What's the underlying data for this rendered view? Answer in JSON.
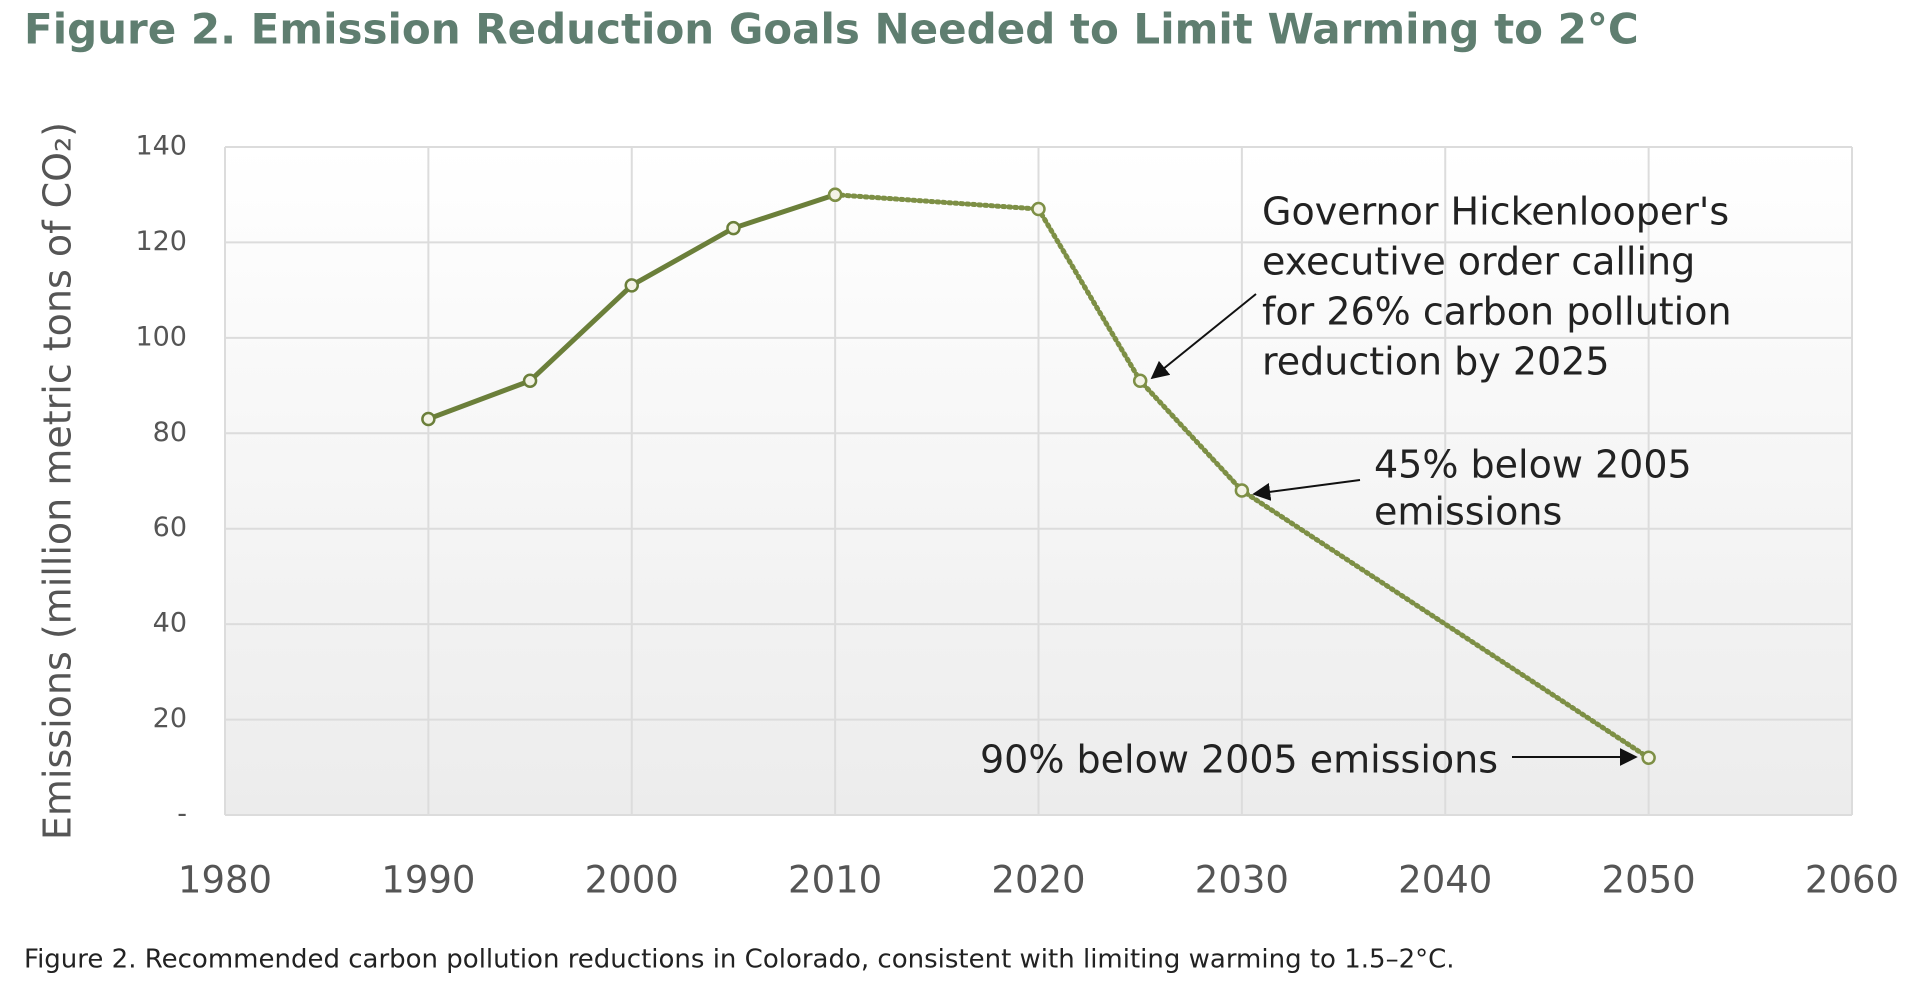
{
  "chart_data": {
    "type": "line",
    "title": "Figure 2. Emission Reduction Goals Needed to Limit Warming to 2°C",
    "caption": "Figure 2. Recommended carbon pollution reductions in Colorado, consistent with limiting warming to 1.5–2°C.",
    "y_label": "Emissions (million metric tons of CO₂)",
    "x": [
      1990,
      1995,
      2000,
      2005,
      2010,
      2020,
      2025,
      2030,
      2050
    ],
    "series": [
      {
        "color": "#6b7f3a",
        "style": "solid",
        "values": [
          83,
          91,
          111,
          123,
          130,
          null,
          null,
          null,
          null
        ]
      },
      {
        "color": "#7d8f45",
        "style": "dotted",
        "values": [
          null,
          null,
          null,
          null,
          130,
          127,
          91,
          68,
          12
        ]
      }
    ],
    "xlim": [
      1980,
      2060
    ],
    "xticks": [
      1980,
      1990,
      2000,
      2010,
      2020,
      2030,
      2040,
      2050,
      2060
    ],
    "ylim": [
      0,
      140
    ],
    "yticks": [
      {
        "value": 0,
        "label": "-"
      },
      20,
      40,
      60,
      80,
      100,
      120,
      140
    ],
    "grid": true,
    "annotations": [
      {
        "lines": [
          "Governor Hickenlooper's",
          "executive order calling",
          "for 26% carbon pollution",
          "reduction by 2025"
        ]
      },
      {
        "lines": [
          "45% below 2005",
          "emissions"
        ]
      },
      {
        "lines": [
          "90% below 2005 emissions"
        ]
      }
    ]
  }
}
